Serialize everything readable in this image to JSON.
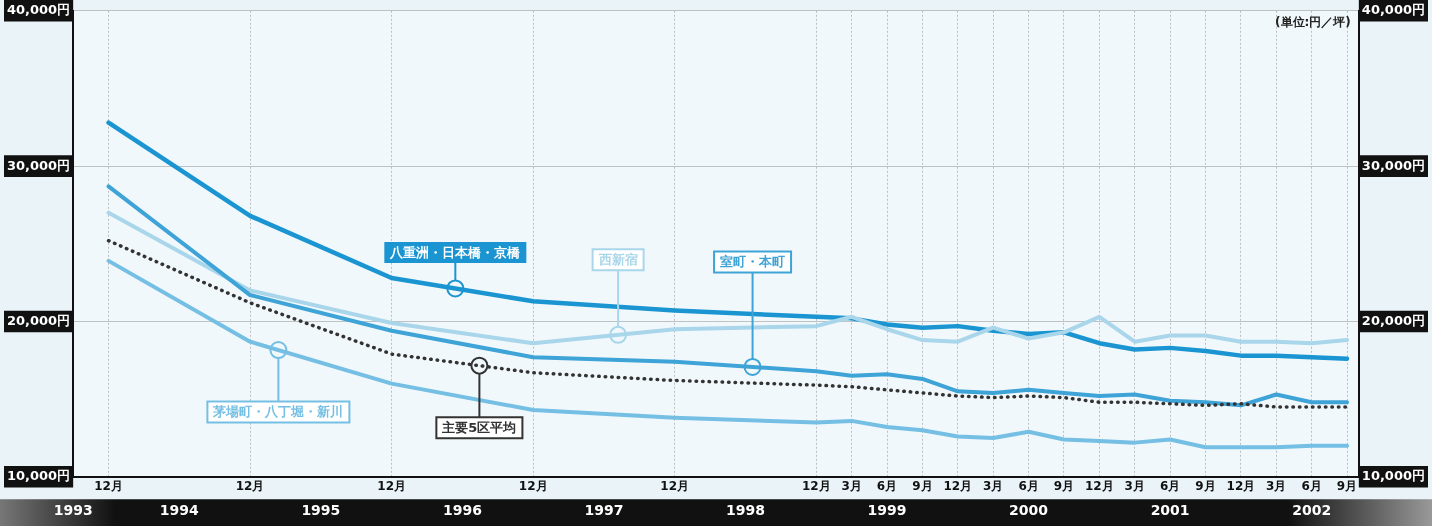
{
  "chart_data": {
    "type": "line",
    "x": [
      "1993-12",
      "1994-12",
      "1995-12",
      "1996-12",
      "1997-12",
      "1998-12",
      "1999-03",
      "1999-06",
      "1999-09",
      "1999-12",
      "2000-03",
      "2000-06",
      "2000-09",
      "2000-12",
      "2001-03",
      "2001-06",
      "2001-09",
      "2001-12",
      "2002-03",
      "2002-06",
      "2002-09"
    ],
    "series": [
      {
        "name": "八重洲・日本橋・京橋",
        "color": "#1a95d2",
        "values": [
          32800,
          26800,
          22800,
          21300,
          20700,
          20300,
          20200,
          19800,
          19600,
          19700,
          19400,
          19200,
          19300,
          18600,
          18200,
          18300,
          18100,
          17800,
          17800,
          17700,
          17600
        ]
      },
      {
        "name": "西新宿",
        "color": "#a9d6ea",
        "values": [
          27000,
          22000,
          19900,
          18600,
          19500,
          19700,
          20300,
          19500,
          18800,
          18700,
          19600,
          18900,
          19300,
          20300,
          18700,
          19100,
          19100,
          18700,
          18700,
          18600,
          18800
        ]
      },
      {
        "name": "室町・本町",
        "color": "#3ea3d6",
        "values": [
          28700,
          21700,
          19400,
          17700,
          17400,
          16800,
          16500,
          16600,
          16300,
          15500,
          15400,
          15600,
          15400,
          15200,
          15300,
          14900,
          14800,
          14600,
          15300,
          14800,
          14800
        ]
      },
      {
        "name": "茅場町・八丁堀・新川",
        "color": "#74bfe3",
        "values": [
          23900,
          18700,
          16000,
          14300,
          13800,
          13500,
          13600,
          13200,
          13000,
          12600,
          12500,
          12900,
          12400,
          12300,
          12200,
          12400,
          11900,
          11900,
          11900,
          12000,
          12000
        ]
      },
      {
        "name": "主要5区平均",
        "color": "#333333",
        "line_style": "dotted",
        "values": [
          25200,
          21200,
          17900,
          16700,
          16200,
          15900,
          15800,
          15600,
          15400,
          15200,
          15100,
          15200,
          15100,
          14800,
          14800,
          14700,
          14600,
          14700,
          14500,
          14500,
          14500
        ]
      }
    ],
    "xlim": [
      "1993-09",
      "2002-10"
    ],
    "xticks": [
      {
        "value": "1993-12",
        "label": "12月"
      },
      {
        "value": "1994-12",
        "label": "12月"
      },
      {
        "value": "1995-12",
        "label": "12月"
      },
      {
        "value": "1996-12",
        "label": "12月"
      },
      {
        "value": "1997-12",
        "label": "12月"
      },
      {
        "value": "1998-12",
        "label": "12月"
      },
      {
        "value": "1999-03",
        "label": "3月"
      },
      {
        "value": "1999-06",
        "label": "6月"
      },
      {
        "value": "1999-09",
        "label": "9月"
      },
      {
        "value": "1999-12",
        "label": "12月"
      },
      {
        "value": "2000-03",
        "label": "3月"
      },
      {
        "value": "2000-06",
        "label": "6月"
      },
      {
        "value": "2000-09",
        "label": "9月"
      },
      {
        "value": "2000-12",
        "label": "12月"
      },
      {
        "value": "2001-03",
        "label": "3月"
      },
      {
        "value": "2001-06",
        "label": "6月"
      },
      {
        "value": "2001-09",
        "label": "9月"
      },
      {
        "value": "2001-12",
        "label": "12月"
      },
      {
        "value": "2002-03",
        "label": "3月"
      },
      {
        "value": "2002-06",
        "label": "6月"
      },
      {
        "value": "2002-09",
        "label": "9月"
      }
    ],
    "x2lim": [
      "1993-09",
      "2002-10"
    ],
    "x2ticks": [
      {
        "value": "1993-09",
        "label": "1993"
      },
      {
        "value": "1994-06",
        "label": "1994"
      },
      {
        "value": "1995-06",
        "label": "1995"
      },
      {
        "value": "1996-06",
        "label": "1996"
      },
      {
        "value": "1997-06",
        "label": "1997"
      },
      {
        "value": "1998-06",
        "label": "1998"
      },
      {
        "value": "1999-06",
        "label": "1999"
      },
      {
        "value": "2000-06",
        "label": "2000"
      },
      {
        "value": "2001-06",
        "label": "2001"
      },
      {
        "value": "2002-06",
        "label": "2002"
      }
    ],
    "ylim": [
      10000,
      40000
    ],
    "yticks": [
      {
        "value": 10000,
        "label": "10,000円"
      },
      {
        "value": 20000,
        "label": "20,000円"
      },
      {
        "value": 30000,
        "label": "30,000円"
      },
      {
        "value": 40000,
        "label": "40,000円"
      }
    ],
    "y2lim": [
      10000,
      40000
    ],
    "y2ticks": [
      {
        "value": 10000,
        "label": "10,000円"
      },
      {
        "value": 20000,
        "label": "20,000円"
      },
      {
        "value": 30000,
        "label": "30,000円"
      },
      {
        "value": 40000,
        "label": "40,000円"
      }
    ],
    "annotations": [
      "(単位:円／坪)"
    ],
    "grid": true,
    "legend": false,
    "marker": "none"
  }
}
